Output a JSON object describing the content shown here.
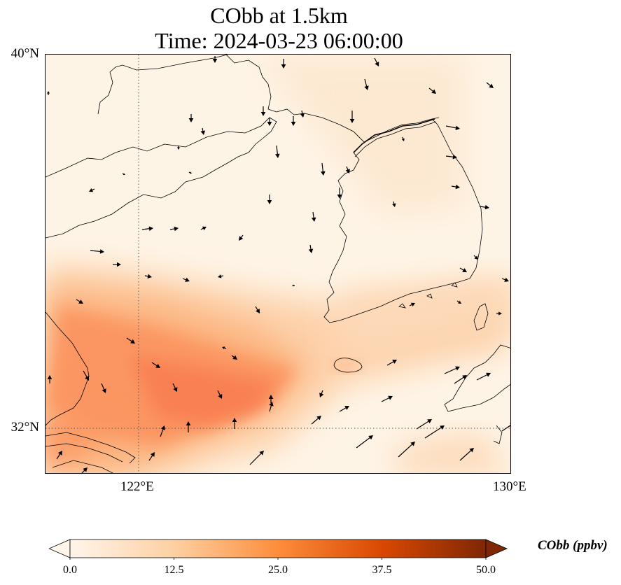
{
  "title": {
    "line1": "CObb at 1.5km",
    "line2": "Time: 2024-03-23 06:00:00"
  },
  "axes": {
    "y_ticks": [
      "40°N",
      "32°N"
    ],
    "x_ticks": [
      "122°E",
      "130°E"
    ],
    "lat_range": [
      31,
      40
    ],
    "lon_range": [
      120,
      130
    ],
    "gridlines": "dotted at 122°E and 32°N"
  },
  "colorbar": {
    "label": "CObb (ppbv)",
    "ticks": [
      "0.0",
      "12.5",
      "25.0",
      "37.5",
      "50.0"
    ],
    "range": [
      0,
      50
    ],
    "colormap": [
      "#fff5eb",
      "#fdd0a2",
      "#fd8d3c",
      "#d94801",
      "#7f2704"
    ],
    "extend": "both"
  },
  "field": {
    "description_units": "ppbv",
    "plume_peak_ppbv": 22,
    "background_ppbv": 3
  }
}
